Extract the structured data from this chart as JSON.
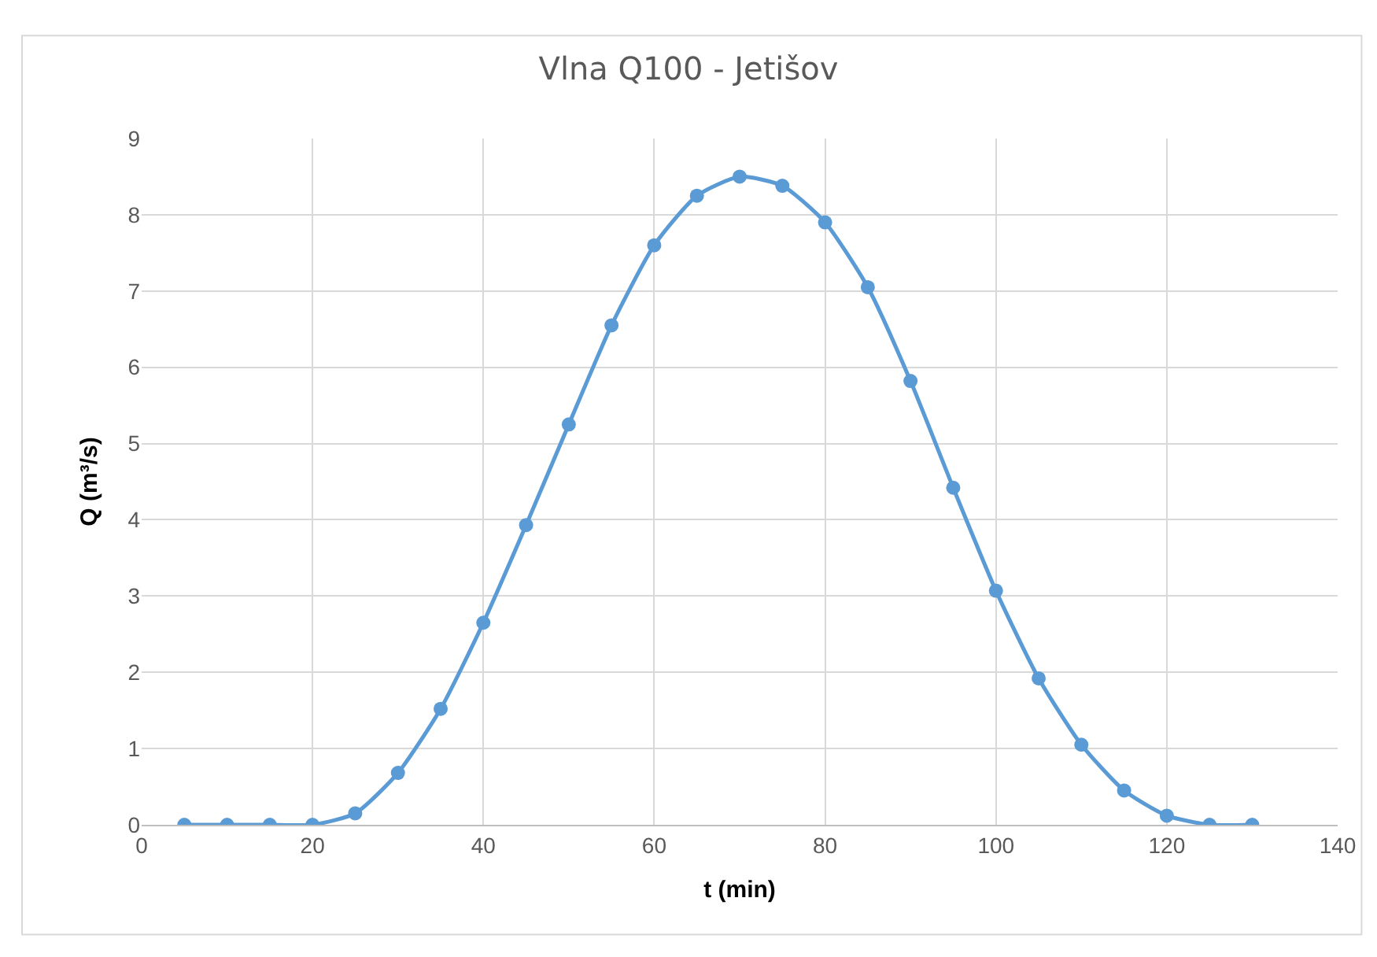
{
  "chart_data": {
    "type": "line",
    "title": "Vlna Q100 - Jetišov",
    "xlabel": "t (min)",
    "ylabel": "Q (m³/s)",
    "x": [
      5,
      10,
      15,
      20,
      25,
      30,
      35,
      40,
      45,
      50,
      55,
      60,
      65,
      70,
      75,
      80,
      85,
      90,
      95,
      100,
      105,
      110,
      115,
      120,
      125,
      130
    ],
    "series": [
      {
        "color": "#5b9bd5",
        "values": [
          0,
          0,
          0,
          0,
          0.15,
          0.68,
          1.52,
          2.65,
          3.93,
          5.25,
          6.55,
          7.6,
          8.25,
          8.5,
          8.38,
          7.9,
          7.05,
          5.82,
          4.42,
          3.07,
          1.92,
          1.05,
          0.45,
          0.12,
          0,
          0
        ]
      }
    ],
    "xlim": [
      0,
      140
    ],
    "xticks": [
      0,
      20,
      40,
      60,
      80,
      100,
      120,
      140
    ],
    "ylim": [
      0,
      9
    ],
    "yticks": [
      0,
      1,
      2,
      3,
      4,
      5,
      6,
      7,
      8,
      9
    ],
    "grid": true,
    "marker": "circle",
    "line_style": "solid"
  }
}
